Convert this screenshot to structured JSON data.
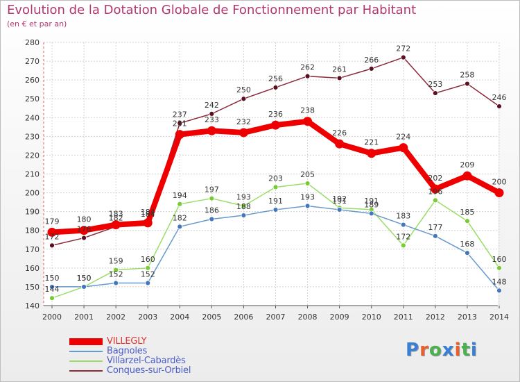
{
  "header": {
    "title": "Evolution de la Dotation Globale de Fonctionnement par Habitant",
    "subtitle": "(en € et par an)"
  },
  "brand": {
    "text": "Proxiti",
    "colors": [
      "#3a7fd6",
      "#e8612c",
      "#4caf50",
      "#3a7fd6",
      "#e8612c",
      "#4caf50",
      "#3a7fd6"
    ]
  },
  "chart_data": {
    "type": "line",
    "x": [
      "2000",
      "2001",
      "2002",
      "2003",
      "2004",
      "2005",
      "2006",
      "2007",
      "2008",
      "2009",
      "2010",
      "2011",
      "2012",
      "2013",
      "2014"
    ],
    "ylim": [
      140,
      280
    ],
    "yticks": [
      140,
      150,
      160,
      170,
      180,
      190,
      200,
      210,
      220,
      230,
      240,
      250,
      260,
      270,
      280
    ],
    "grid": true,
    "legend_position": "bottom-left",
    "series": [
      {
        "name": "Conques-sur-Orbiel",
        "color": "#8b2a3a",
        "dot": "#5a1020",
        "width": 1.5,
        "r": 3.5,
        "values": [
          172,
          176,
          182,
          184,
          237,
          242,
          250,
          256,
          262,
          261,
          266,
          272,
          253,
          258,
          246
        ],
        "labels": [
          "172",
          "176",
          "182",
          "184",
          "237",
          "242",
          "250",
          "256",
          "262",
          "261",
          "266",
          "272",
          "253",
          "258",
          "246"
        ]
      },
      {
        "name": "Villarzel-Cabardès",
        "color": "#99dd66",
        "dot": "#77cc33",
        "width": 1.5,
        "r": 3.5,
        "values": [
          144,
          150,
          159,
          160,
          194,
          197,
          193,
          203,
          205,
          192,
          191,
          172,
          196,
          185,
          160
        ],
        "labels": [
          "144",
          "150",
          "159",
          "160",
          "194",
          "197",
          "193",
          "203",
          "205",
          "192",
          "191",
          "172",
          "196",
          "185",
          "160"
        ]
      },
      {
        "name": "Bagnoles",
        "color": "#6699cc",
        "dot": "#4477bb",
        "width": 1.5,
        "r": 3.5,
        "values": [
          150,
          150,
          152,
          152,
          182,
          186,
          188,
          191,
          193,
          191,
          189,
          183,
          177,
          168,
          148
        ],
        "labels": [
          "150",
          "150",
          "152",
          "152",
          "182",
          "186",
          "188",
          "191",
          "193",
          "191",
          "189",
          "183",
          "177",
          "168",
          "148"
        ]
      },
      {
        "name": "VILLEGLY",
        "color": "#ee0000",
        "dot": "#ee0000",
        "width": 8,
        "r": 6.5,
        "values": [
          179,
          180,
          183,
          184,
          231,
          233,
          232,
          236,
          238,
          226,
          221,
          224,
          202,
          209,
          200
        ],
        "labels": [
          "179",
          "180",
          "183",
          "184",
          "231",
          "233",
          "232",
          "236",
          "238",
          "226",
          "221",
          "224",
          "202",
          "209",
          "200"
        ]
      }
    ],
    "legend_order": [
      "VILLEGLY",
      "Bagnoles",
      "Villarzel-Cabardès",
      "Conques-sur-Orbiel"
    ]
  }
}
